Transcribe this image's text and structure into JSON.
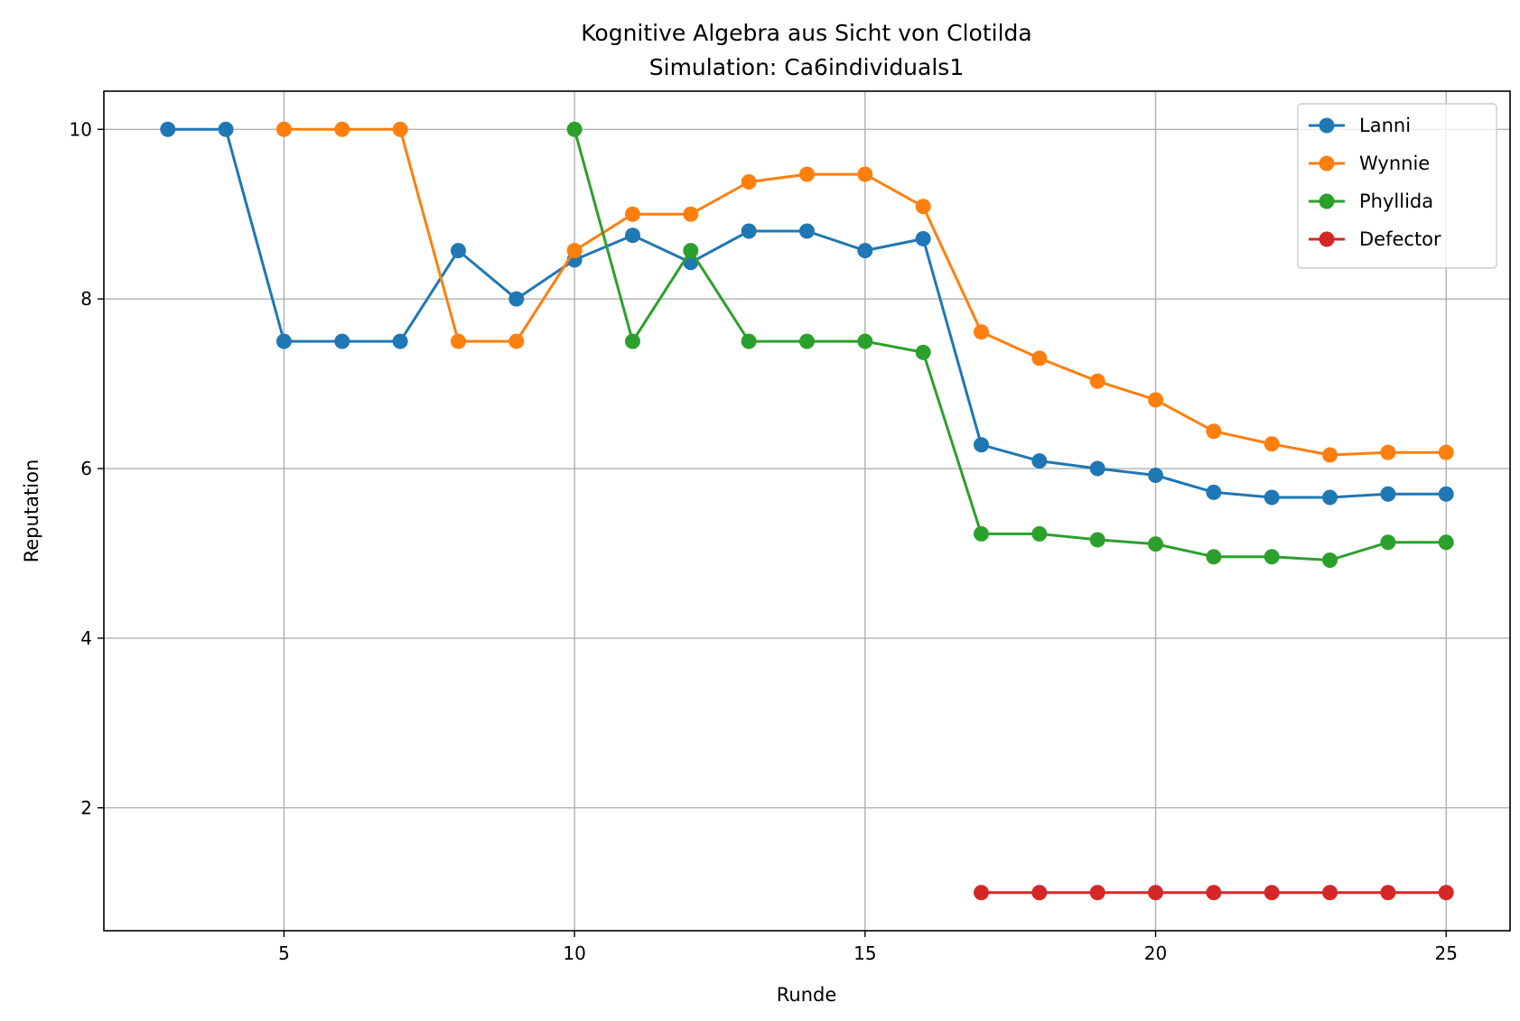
{
  "chart_data": {
    "type": "line",
    "title": "Kognitive Algebra aus Sicht von Clotilda",
    "subtitle": "Simulation: Ca6individuals1",
    "xlabel": "Runde",
    "ylabel": "Reputation",
    "xlim": [
      1.9,
      26.1
    ],
    "ylim": [
      0.55,
      10.45
    ],
    "xticks": [
      5,
      10,
      15,
      20,
      25
    ],
    "yticks": [
      2,
      4,
      6,
      8,
      10
    ],
    "grid": true,
    "legend_position": "top-right",
    "series": [
      {
        "name": "Lanni",
        "color": "#1f77b4",
        "x": [
          3,
          4,
          5,
          6,
          7,
          8,
          9,
          10,
          11,
          12,
          13,
          14,
          15,
          16,
          17,
          18,
          19,
          20,
          21,
          22,
          23,
          24,
          25
        ],
        "values": [
          10,
          10,
          7.5,
          7.5,
          7.5,
          8.57,
          8.0,
          8.46,
          8.75,
          8.43,
          8.8,
          8.8,
          8.57,
          8.71,
          6.28,
          6.09,
          6.0,
          5.92,
          5.72,
          5.66,
          5.66,
          5.7,
          5.7
        ]
      },
      {
        "name": "Wynnie",
        "color": "#ff7f0e",
        "x": [
          5,
          6,
          7,
          8,
          9,
          10,
          11,
          12,
          13,
          14,
          15,
          16,
          17,
          18,
          19,
          20,
          21,
          22,
          23,
          24,
          25
        ],
        "values": [
          10,
          10,
          10,
          7.5,
          7.5,
          8.57,
          9.0,
          9.0,
          9.38,
          9.47,
          9.47,
          9.09,
          7.61,
          7.3,
          7.03,
          6.81,
          6.44,
          6.29,
          6.16,
          6.19,
          6.19
        ]
      },
      {
        "name": "Phyllida",
        "color": "#2ca02c",
        "x": [
          10,
          11,
          12,
          13,
          14,
          15,
          16,
          17,
          18,
          19,
          20,
          21,
          22,
          23,
          24,
          25
        ],
        "values": [
          10,
          7.5,
          8.57,
          7.5,
          7.5,
          7.5,
          7.37,
          5.23,
          5.23,
          5.16,
          5.11,
          4.96,
          4.96,
          4.92,
          5.13,
          5.13
        ]
      },
      {
        "name": "Defector",
        "color": "#d62728",
        "x": [
          17,
          18,
          19,
          20,
          21,
          22,
          23,
          24,
          25
        ],
        "values": [
          1,
          1,
          1,
          1,
          1,
          1,
          1,
          1,
          1
        ]
      }
    ]
  }
}
